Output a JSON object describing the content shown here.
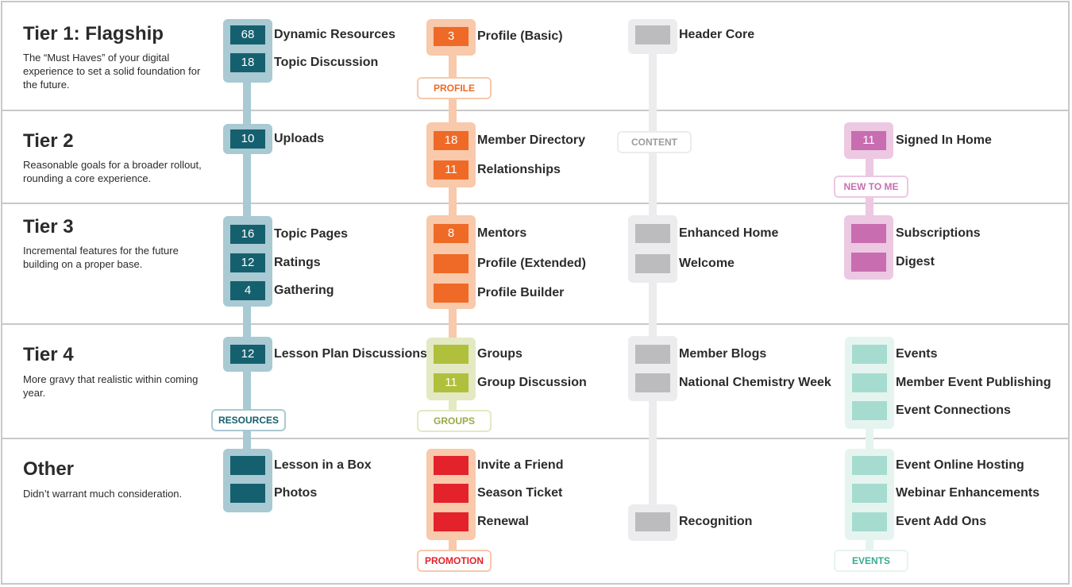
{
  "colors": {
    "resources": "#15606f",
    "resources_bg": "#a9c9d3",
    "resources_tag": "#15606f",
    "profile": "#ef6a26",
    "profile_bg": "#f8c9ab",
    "profile_tag": "#ef6a26",
    "groups": "#b0c03c",
    "groups_bg": "#e3e9c2",
    "groups_tag": "#9aa845",
    "promotion": "#e3222b",
    "promotion_bg": "#f8c9ab",
    "promotion_tag": "#e3222b",
    "content": "#bcbcbf",
    "content_bg": "#ececee",
    "content_tag": "#9c9c9c",
    "newtome": "#c86db0",
    "newtome_bg": "#ecc8e2",
    "newtome_tag": "#c86db0",
    "events": "#a6dcd0",
    "events_bg": "#e6f4f0",
    "events_tag": "#3aa98f"
  },
  "tiers": [
    {
      "title": "Tier 1: Flagship",
      "desc": "The “Must Haves” of your digital experience to set a solid foundation for the future."
    },
    {
      "title": "Tier 2",
      "desc": "Reasonable goals for a broader rollout, rounding a core experience."
    },
    {
      "title": "Tier 3",
      "desc": "Incremental features for the future building on a proper base."
    },
    {
      "title": "Tier 4",
      "desc": "More gravy that realistic within coming year."
    },
    {
      "title": "Other",
      "desc": "Didn’t warrant much consideration."
    }
  ],
  "tracks": {
    "resources": {
      "tag": "RESOURCES",
      "items": [
        {
          "count": "68",
          "label": "Dynamic Resources"
        },
        {
          "count": "18",
          "label": "Topic Discussion"
        },
        {
          "count": "10",
          "label": "Uploads"
        },
        {
          "count": "16",
          "label": "Topic Pages"
        },
        {
          "count": "12",
          "label": "Ratings"
        },
        {
          "count": "4",
          "label": "Gathering"
        },
        {
          "count": "12",
          "label": "Lesson Plan Discussions"
        },
        {
          "count": "",
          "label": "Lesson in a Box"
        },
        {
          "count": "",
          "label": "Photos"
        }
      ]
    },
    "profile": {
      "tag": "PROFILE",
      "items": [
        {
          "count": "3",
          "label": "Profile (Basic)"
        },
        {
          "count": "18",
          "label": "Member Directory"
        },
        {
          "count": "11",
          "label": "Relationships"
        },
        {
          "count": "8",
          "label": "Mentors"
        },
        {
          "count": "",
          "label": "Profile (Extended)"
        },
        {
          "count": "",
          "label": "Profile Builder"
        }
      ]
    },
    "groups": {
      "tag": "GROUPS",
      "items": [
        {
          "count": "",
          "label": "Groups"
        },
        {
          "count": "11",
          "label": "Group Discussion"
        }
      ]
    },
    "promotion": {
      "tag": "PROMOTION",
      "items": [
        {
          "count": "",
          "label": "Invite a Friend"
        },
        {
          "count": "",
          "label": "Season Ticket"
        },
        {
          "count": "",
          "label": "Renewal"
        }
      ]
    },
    "content": {
      "tag": "CONTENT",
      "items": [
        {
          "count": "",
          "label": "Header Core"
        },
        {
          "count": "",
          "label": "Enhanced Home"
        },
        {
          "count": "",
          "label": "Welcome"
        },
        {
          "count": "",
          "label": "Member Blogs"
        },
        {
          "count": "",
          "label": "National Chemistry Week"
        },
        {
          "count": "",
          "label": "Recognition"
        }
      ]
    },
    "newtome": {
      "tag": "NEW TO ME",
      "items": [
        {
          "count": "11",
          "label": "Signed In Home"
        },
        {
          "count": "",
          "label": "Subscriptions"
        },
        {
          "count": "",
          "label": "Digest"
        }
      ]
    },
    "events": {
      "tag": "EVENTS",
      "items": [
        {
          "count": "",
          "label": "Events"
        },
        {
          "count": "",
          "label": "Member Event Publishing"
        },
        {
          "count": "",
          "label": "Event Connections"
        },
        {
          "count": "",
          "label": "Event Online Hosting"
        },
        {
          "count": "",
          "label": "Webinar Enhancements"
        },
        {
          "count": "",
          "label": "Event Add Ons"
        }
      ]
    }
  }
}
